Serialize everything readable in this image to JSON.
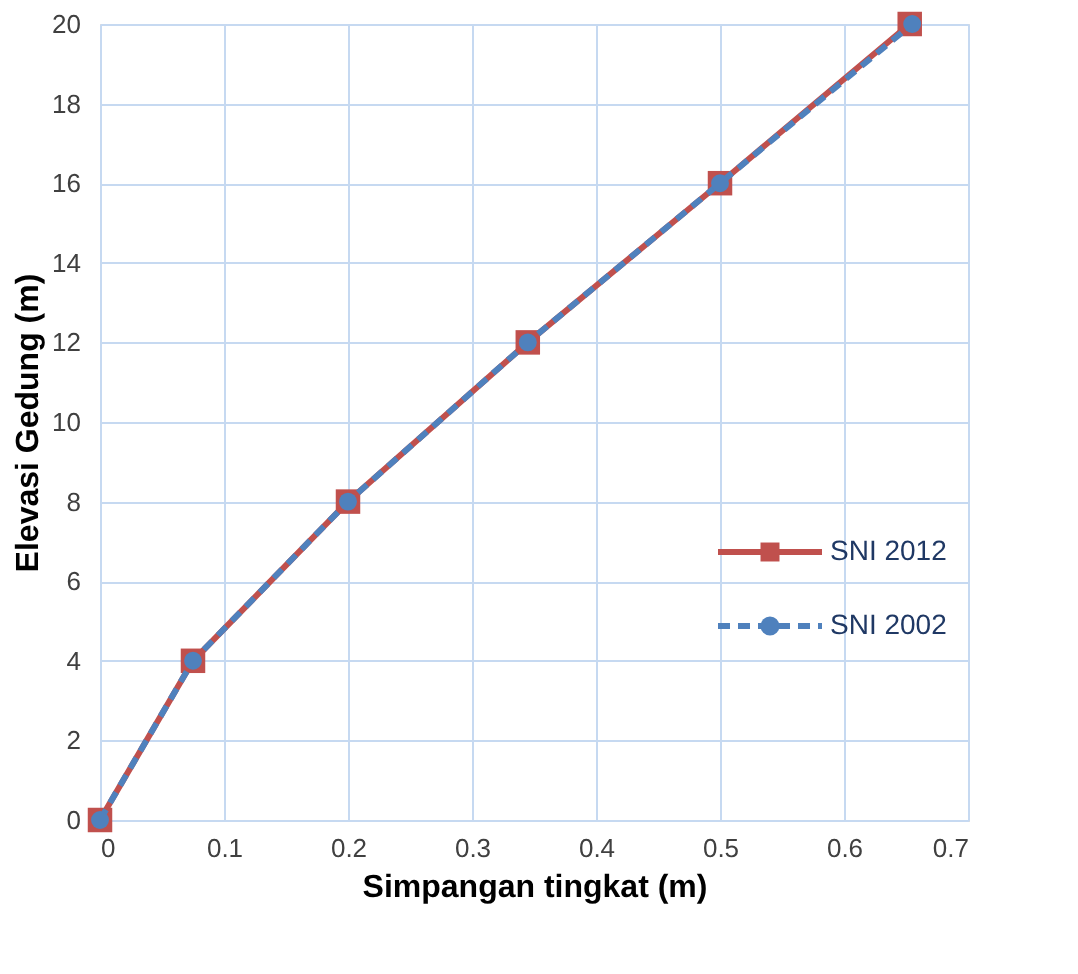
{
  "chart_data": {
    "type": "line",
    "xlabel": "Simpangan tingkat (m)",
    "ylabel": "Elevasi Gedung (m)",
    "xlim": [
      0,
      0.7
    ],
    "xticks": [
      0,
      0.1,
      0.2,
      0.3,
      0.4,
      0.5,
      0.6,
      0.7
    ],
    "ylim": [
      0,
      20
    ],
    "yticks": [
      0,
      2,
      4,
      6,
      8,
      10,
      12,
      14,
      16,
      18,
      20
    ],
    "grid": true,
    "legend": "right",
    "series": [
      {
        "name": "SNI 2012",
        "color": "#c0504d",
        "marker": "square",
        "line_style": "solid",
        "x": [
          0,
          0.075,
          0.2,
          0.345,
          0.5,
          0.653
        ],
        "values": [
          0,
          4,
          8,
          12,
          16,
          20
        ]
      },
      {
        "name": "SNI 2002",
        "color": "#4f81bd",
        "marker": "circle",
        "line_style": "dashed",
        "x": [
          0,
          0.075,
          0.2,
          0.345,
          0.5,
          0.655
        ],
        "values": [
          0,
          4,
          8,
          12,
          16,
          20
        ]
      }
    ]
  }
}
